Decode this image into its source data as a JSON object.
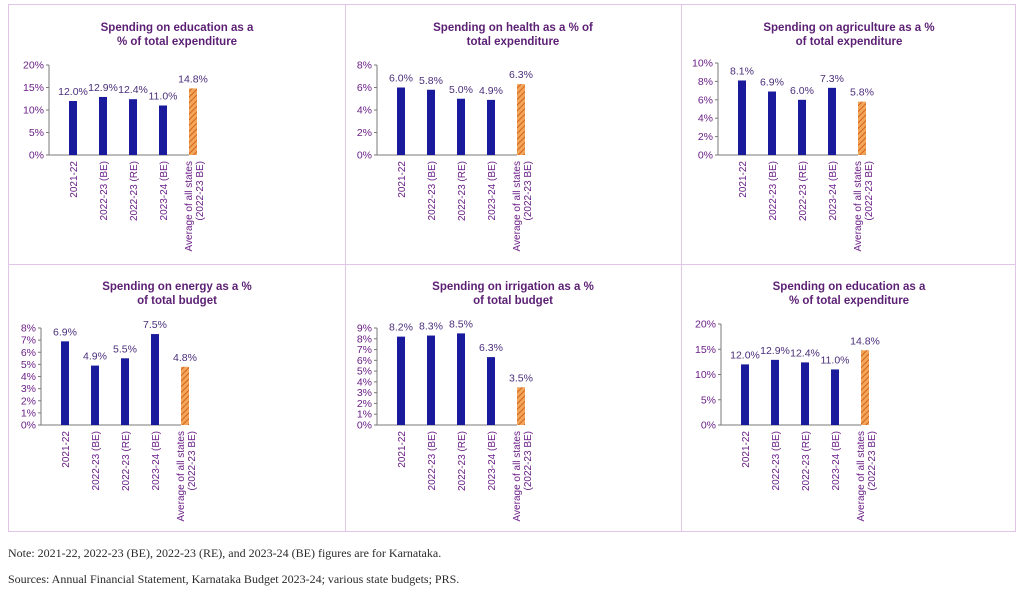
{
  "colors": {
    "actual": "#1a1a9c",
    "average": "#e8822a",
    "title": "#5b1f73",
    "axis_text": "#6a1f86",
    "label": "#4a2e7a"
  },
  "chart_data": [
    {
      "type": "bar",
      "title_lines": [
        "Spending on education as a",
        "% of total expenditure"
      ],
      "categories": [
        "2021-22",
        "2022-23 (BE)",
        "2022-23 (RE)",
        "2023-24 (BE)",
        "Average of all states (2022-23 BE)"
      ],
      "values": [
        12.0,
        12.9,
        12.4,
        11.0,
        14.8
      ],
      "data_labels": [
        "12.0%",
        "12.9%",
        "12.4%",
        "11.0%",
        "14.8%"
      ],
      "ylim": [
        0,
        20
      ],
      "yticks": [
        "0%",
        "5%",
        "10%",
        "15%",
        "20%"
      ],
      "ytick_values": [
        0,
        5,
        10,
        15,
        20
      ],
      "grid": false
    },
    {
      "type": "bar",
      "title_lines": [
        "Spending on health as a % of",
        "total expenditure"
      ],
      "categories": [
        "2021-22",
        "2022-23 (BE)",
        "2022-23 (RE)",
        "2023-24 (BE)",
        "Average of all states (2022-23 BE)"
      ],
      "values": [
        6.0,
        5.8,
        5.0,
        4.9,
        6.3
      ],
      "data_labels": [
        "6.0%",
        "5.8%",
        "5.0%",
        "4.9%",
        "6.3%"
      ],
      "ylim": [
        0,
        8
      ],
      "yticks": [
        "0%",
        "2%",
        "4%",
        "6%",
        "8%"
      ],
      "ytick_values": [
        0,
        2,
        4,
        6,
        8
      ],
      "grid": false
    },
    {
      "type": "bar",
      "title_lines": [
        "Spending on agriculture as a %",
        "of total expenditure"
      ],
      "categories": [
        "2021-22",
        "2022-23 (BE)",
        "2022-23 (RE)",
        "2023-24 (BE)",
        "Average of all states (2022-23 BE)"
      ],
      "values": [
        8.1,
        6.9,
        6.0,
        7.3,
        5.8
      ],
      "data_labels": [
        "8.1%",
        "6.9%",
        "6.0%",
        "7.3%",
        "5.8%"
      ],
      "ylim": [
        0,
        10
      ],
      "yticks": [
        "0%",
        "2%",
        "4%",
        "6%",
        "8%",
        "10%"
      ],
      "ytick_values": [
        0,
        2,
        4,
        6,
        8,
        10
      ],
      "grid": false
    },
    {
      "type": "bar",
      "title_lines": [
        "Spending on energy as a %",
        "of total budget"
      ],
      "categories": [
        "2021-22",
        "2022-23 (BE)",
        "2022-23 (RE)",
        "2023-24 (BE)",
        "Average of all states (2022-23 BE)"
      ],
      "values": [
        6.9,
        4.9,
        5.5,
        7.5,
        4.8
      ],
      "data_labels": [
        "6.9%",
        "4.9%",
        "5.5%",
        "7.5%",
        "4.8%"
      ],
      "ylim": [
        0,
        8
      ],
      "yticks": [
        "0%",
        "1%",
        "2%",
        "3%",
        "4%",
        "5%",
        "6%",
        "7%",
        "8%"
      ],
      "ytick_values": [
        0,
        1,
        2,
        3,
        4,
        5,
        6,
        7,
        8
      ],
      "grid": false
    },
    {
      "type": "bar",
      "title_lines": [
        "Spending on irrigation as a %",
        "of total budget"
      ],
      "categories": [
        "2021-22",
        "2022-23 (BE)",
        "2022-23 (RE)",
        "2023-24 (BE)",
        "Average of all states (2022-23 BE)"
      ],
      "values": [
        8.2,
        8.3,
        8.5,
        6.3,
        3.5
      ],
      "data_labels": [
        "8.2%",
        "8.3%",
        "8.5%",
        "6.3%",
        "3.5%"
      ],
      "ylim": [
        0,
        9
      ],
      "yticks": [
        "0%",
        "1%",
        "2%",
        "3%",
        "4%",
        "5%",
        "6%",
        "7%",
        "8%",
        "9%"
      ],
      "ytick_values": [
        0,
        1,
        2,
        3,
        4,
        5,
        6,
        7,
        8,
        9
      ],
      "grid": false
    },
    {
      "type": "bar",
      "title_lines": [
        "Spending on education as a",
        "% of total expenditure"
      ],
      "categories": [
        "2021-22",
        "2022-23 (BE)",
        "2022-23 (RE)",
        "2023-24 (BE)",
        "Average of all states (2022-23 BE)"
      ],
      "values": [
        12.0,
        12.9,
        12.4,
        11.0,
        14.8
      ],
      "data_labels": [
        "12.0%",
        "12.9%",
        "12.4%",
        "11.0%",
        "14.8%"
      ],
      "ylim": [
        0,
        20
      ],
      "yticks": [
        "0%",
        "5%",
        "10%",
        "15%",
        "20%"
      ],
      "ytick_values": [
        0,
        5,
        10,
        15,
        20
      ],
      "grid": false
    }
  ],
  "footer": {
    "note": "Note: 2021-22, 2022-23 (BE), 2022-23 (RE), and 2023-24 (BE) figures are for Karnataka.",
    "sources": "Sources: Annual Financial Statement, Karnataka Budget 2023-24; various state budgets; PRS."
  }
}
